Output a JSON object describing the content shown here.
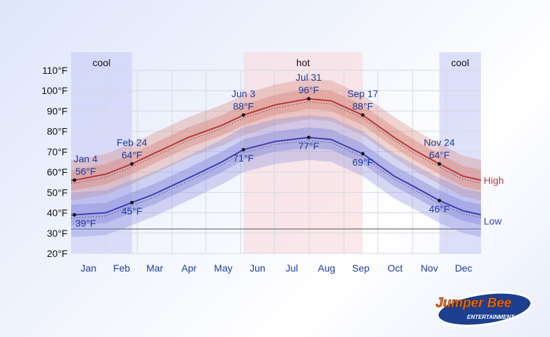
{
  "chart_data": {
    "type": "area",
    "title": "",
    "xlabel": "",
    "ylabel": "",
    "ylim": [
      20,
      110
    ],
    "yticks": [
      "20°F",
      "30°F",
      "40°F",
      "50°F",
      "60°F",
      "70°F",
      "80°F",
      "90°F",
      "100°F",
      "110°F"
    ],
    "ytick_values": [
      20,
      30,
      40,
      50,
      60,
      70,
      80,
      90,
      100,
      110
    ],
    "categories": [
      "Jan",
      "Feb",
      "Mar",
      "Apr",
      "May",
      "Jun",
      "Jul",
      "Aug",
      "Sep",
      "Oct",
      "Nov",
      "Dec"
    ],
    "grid": true,
    "freezing_line": 32,
    "seasons": [
      {
        "label": "cool",
        "start": "Jan 1",
        "end": "Feb 24",
        "color": "#c9cdf6"
      },
      {
        "label": "hot",
        "start": "Jun 3",
        "end": "Sep 17",
        "color": "#f9d9dc"
      },
      {
        "label": "",
        "start": "Nov 24",
        "end": "Dec 31",
        "color": "#c9cdf6"
      },
      {
        "label": "cool",
        "start": "Nov 24",
        "end": "Dec 31",
        "color": "#c9cdf6",
        "label_only": true
      }
    ],
    "series": [
      {
        "name": "High",
        "color": "#b8373a",
        "band_color": "#d9897f",
        "x": [
          "Jan 1",
          "Jan 4",
          "Feb 1",
          "Feb 24",
          "Mar 15",
          "Apr 15",
          "May 15",
          "Jun 3",
          "Jul 1",
          "Jul 31",
          "Aug 20",
          "Sep 17",
          "Oct 15",
          "Nov 1",
          "Nov 24",
          "Dec 15",
          "Dec 31"
        ],
        "y": [
          56,
          56,
          59,
          64,
          69,
          77,
          83,
          88,
          93,
          96,
          95,
          88,
          77,
          71,
          64,
          58,
          56
        ],
        "p25_75_spread": 5,
        "p10_90_spread": 10
      },
      {
        "name": "Low",
        "color": "#3a3fb5",
        "band_color": "#8b8fdc",
        "x": [
          "Jan 1",
          "Jan 4",
          "Feb 1",
          "Feb 24",
          "Mar 15",
          "Apr 15",
          "May 15",
          "Jun 3",
          "Jul 1",
          "Jul 31",
          "Aug 20",
          "Sep 17",
          "Oct 15",
          "Nov 1",
          "Nov 24",
          "Dec 15",
          "Dec 31"
        ],
        "y": [
          39,
          39,
          40,
          45,
          49,
          57,
          65,
          71,
          75,
          77,
          76,
          69,
          58,
          53,
          46,
          41,
          39
        ],
        "p25_75_spread": 5,
        "p10_90_spread": 11
      }
    ],
    "annotations": [
      {
        "date": "Jan 4",
        "label": "Jan 4",
        "value": "56°F",
        "series": "High",
        "y": 56
      },
      {
        "date": "Feb 24",
        "label": "Feb 24",
        "value": "64°F",
        "series": "High",
        "y": 64
      },
      {
        "date": "Jun 3",
        "label": "Jun 3",
        "value": "88°F",
        "series": "High",
        "y": 88
      },
      {
        "date": "Jul 31",
        "label": "Jul 31",
        "value": "96°F",
        "series": "High",
        "y": 96
      },
      {
        "date": "Sep 17",
        "label": "Sep 17",
        "value": "88°F",
        "series": "High",
        "y": 88
      },
      {
        "date": "Nov 24",
        "label": "Nov 24",
        "value": "64°F",
        "series": "High",
        "y": 64
      },
      {
        "date": "Jan 4",
        "label": "",
        "value": "39°F",
        "series": "Low",
        "y": 39
      },
      {
        "date": "Feb 24",
        "label": "",
        "value": "45°F",
        "series": "Low",
        "y": 45
      },
      {
        "date": "Jun 3",
        "label": "",
        "value": "71°F",
        "series": "Low",
        "y": 71
      },
      {
        "date": "Jul 31",
        "label": "",
        "value": "77°F",
        "series": "Low",
        "y": 77
      },
      {
        "date": "Sep 17",
        "label": "",
        "value": "69°F",
        "series": "Low",
        "y": 69
      },
      {
        "date": "Nov 24",
        "label": "",
        "value": "46°F",
        "series": "Low",
        "y": 46
      }
    ],
    "legend": [
      "High",
      "Low"
    ]
  },
  "logo": {
    "text_main": "Jumper Bee",
    "text_sub": "ENTERTAINMENT"
  }
}
